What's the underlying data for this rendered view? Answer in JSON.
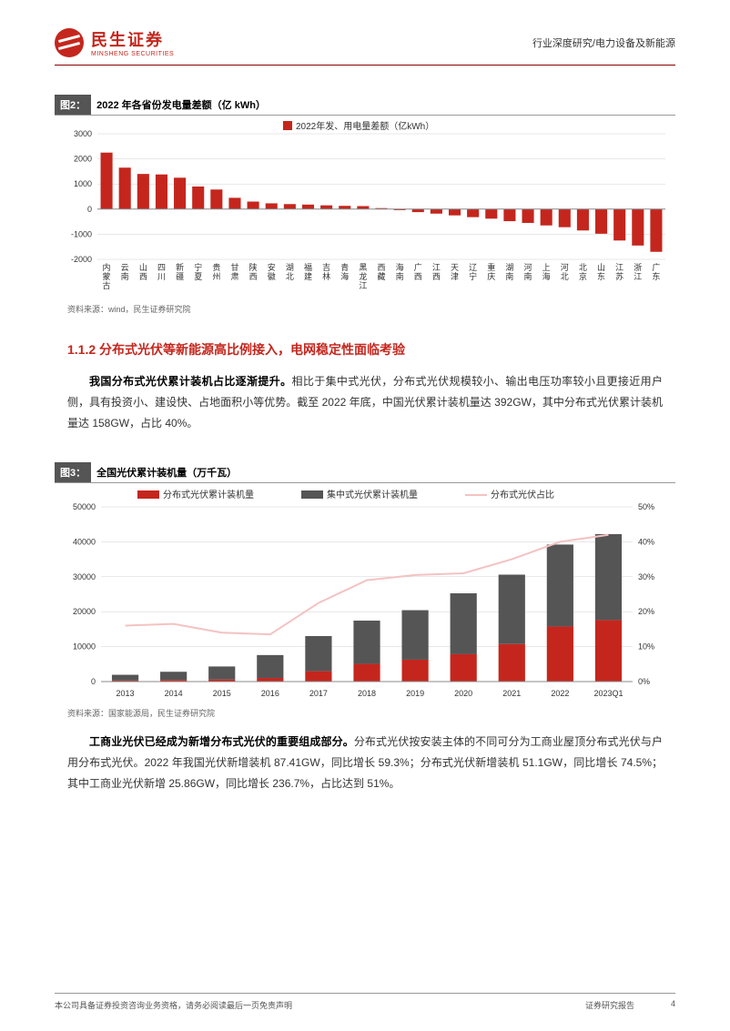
{
  "header": {
    "logo_cn": "民生证券",
    "logo_en": "MINSHENG SECURITIES",
    "right": "行业深度研究/电力设备及新能源"
  },
  "figure2": {
    "tab": "图2：",
    "title": "2022 年各省份发电量差额（亿 kWh）",
    "legend": "2022年发、用电量差额（亿kWh）",
    "type": "bar",
    "bar_color": "#c4261d",
    "grid_color": "#d0d0d0",
    "axis_color": "#888888",
    "background_color": "#ffffff",
    "ylim": [
      -2000,
      3000
    ],
    "ytick_step": 1000,
    "categories": [
      "内蒙古",
      "云南",
      "山西",
      "四川",
      "新疆",
      "宁夏",
      "贵州",
      "甘肃",
      "陕西",
      "安徽",
      "湖北",
      "福建",
      "吉林",
      "青海",
      "黑龙江",
      "西藏",
      "海南",
      "广西",
      "江西",
      "天津",
      "辽宁",
      "重庆",
      "湖南",
      "河南",
      "上海",
      "河北",
      "北京",
      "山东",
      "江苏",
      "浙江",
      "广东"
    ],
    "values": [
      2250,
      1650,
      1400,
      1380,
      1250,
      900,
      780,
      450,
      300,
      230,
      200,
      180,
      150,
      130,
      120,
      40,
      -40,
      -120,
      -180,
      -250,
      -320,
      -380,
      -480,
      -550,
      -650,
      -720,
      -850,
      -980,
      -1250,
      -1450,
      -1700
    ],
    "source": "资料来源：wind，民生证券研究院",
    "label_fontsize": 9,
    "legend_fontsize": 10
  },
  "section_heading": "1.1.2 分布式光伏等新能源高比例接入，电网稳定性面临考验",
  "para1_bold": "我国分布式光伏累计装机占比逐渐提升。",
  "para1_rest": "相比于集中式光伏，分布式光伏规模较小、输出电压功率较小且更接近用户侧，具有投资小、建设快、占地面积小等优势。截至 2022 年底，中国光伏累计装机量达 392GW，其中分布式光伏累计装机量达 158GW，占比 40%。",
  "figure3": {
    "tab": "图3：",
    "title": "全国光伏累计装机量（万千瓦）",
    "type": "stacked-bar-line",
    "legend": {
      "distributed": "分布式光伏累计装机量",
      "centralized": "集中式光伏累计装机量",
      "pct": "分布式光伏占比"
    },
    "categories": [
      "2013",
      "2014",
      "2015",
      "2016",
      "2017",
      "2018",
      "2019",
      "2020",
      "2021",
      "2022",
      "2023Q1"
    ],
    "distributed_values": [
      310,
      467,
      606,
      1032,
      2966,
      5061,
      6263,
      7831,
      10750,
      15772,
      17600
    ],
    "centralized_values": [
      1632,
      2338,
      3712,
      6557,
      10059,
      12384,
      14167,
      17428,
      19848,
      23442,
      24600
    ],
    "pct_values": [
      16,
      16.5,
      14,
      13.5,
      22.5,
      29,
      30.5,
      31,
      35,
      40,
      42
    ],
    "distributed_color": "#c4261d",
    "centralized_color": "#555555",
    "line_color": "#f4c2c2",
    "grid_color": "#d0d0d0",
    "background_color": "#ffffff",
    "y1_lim": [
      0,
      50000
    ],
    "y1_tick_step": 10000,
    "y2_lim": [
      0,
      50
    ],
    "y2_tick_step": 10,
    "source": "资料来源：国家能源局，民生证券研究院",
    "label_fontsize": 9,
    "legend_fontsize": 10
  },
  "para2_bold": "工商业光伏已经成为新增分布式光伏的重要组成部分。",
  "para2_rest": "分布式光伏按安装主体的不同可分为工商业屋顶分布式光伏与户用分布式光伏。2022 年我国光伏新增装机 87.41GW，同比增长 59.3%；分布式光伏新增装机 51.1GW，同比增长 74.5%；其中工商业光伏新增 25.86GW，同比增长 236.7%，占比达到 51%。",
  "footer": {
    "left": "本公司具备证券投资咨询业务资格，请务必阅读最后一页免责声明",
    "right_label": "证券研究报告",
    "page": "4"
  }
}
